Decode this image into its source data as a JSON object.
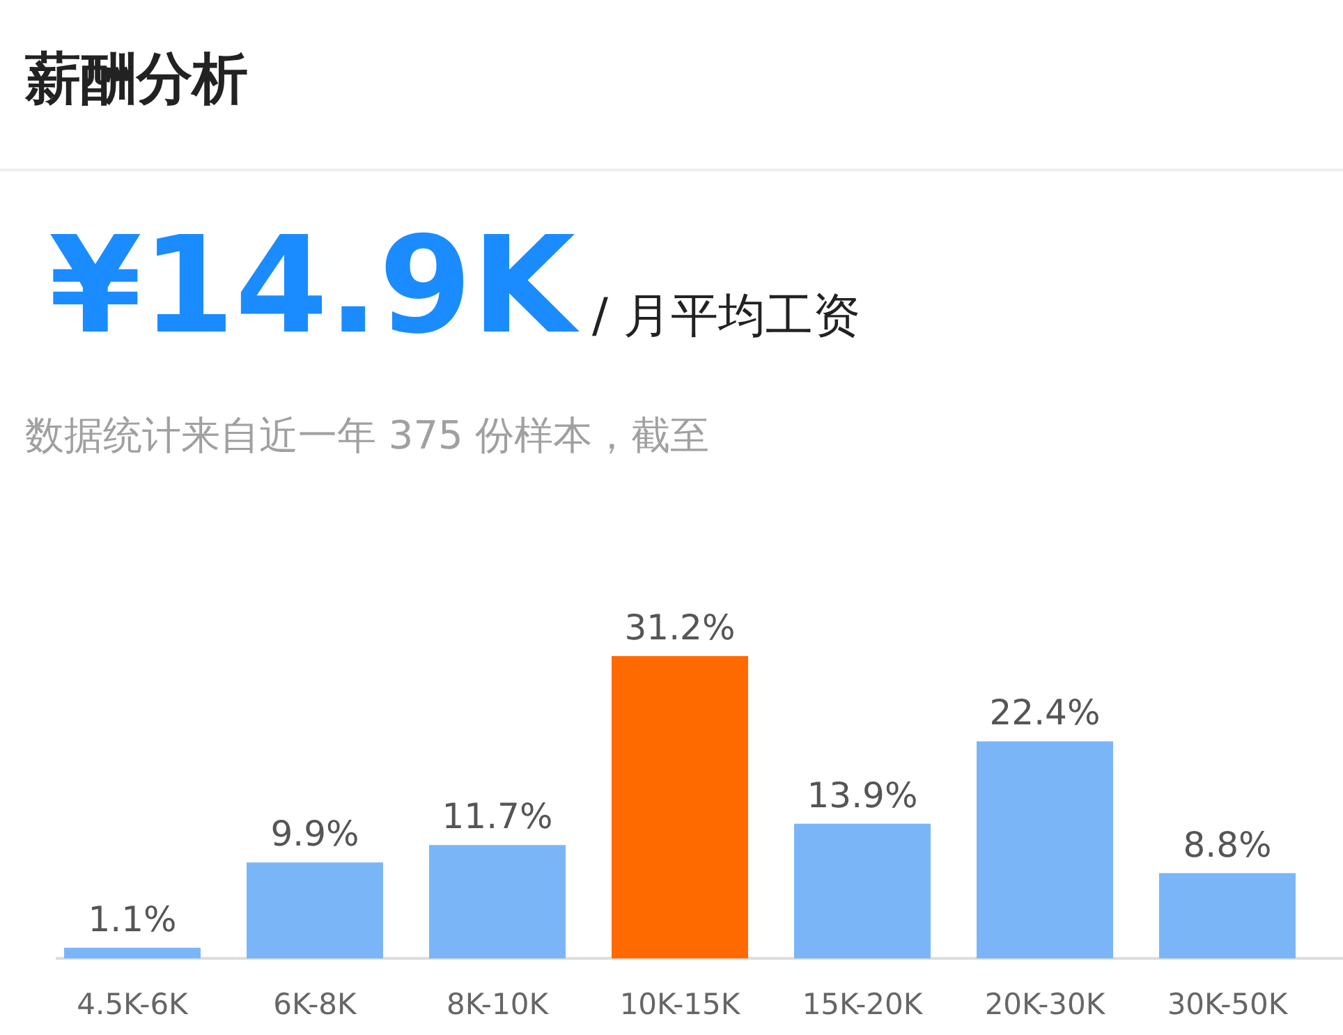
{
  "chart_data": {
    "type": "bar",
    "title": "薪酬分析",
    "annotations": [
      "¥14.9K",
      "/ 月平均工资",
      "数据统计来自近一年 375 份样本，截至"
    ],
    "categories": [
      "4.5K-6K",
      "6K-8K",
      "8K-10K",
      "10K-15K",
      "15K-20K",
      "20K-30K",
      "30K-50K"
    ],
    "values": [
      1.1,
      9.9,
      11.7,
      31.2,
      13.9,
      22.4,
      8.8
    ],
    "value_labels": [
      "1.1%",
      "9.9%",
      "11.7%",
      "31.2%",
      "13.9%",
      "22.4%",
      "8.8%"
    ],
    "colors": [
      "#7ab6f7",
      "#7ab6f7",
      "#7ab6f7",
      "#ff6a00",
      "#7ab6f7",
      "#7ab6f7",
      "#7ab6f7"
    ]
  }
}
